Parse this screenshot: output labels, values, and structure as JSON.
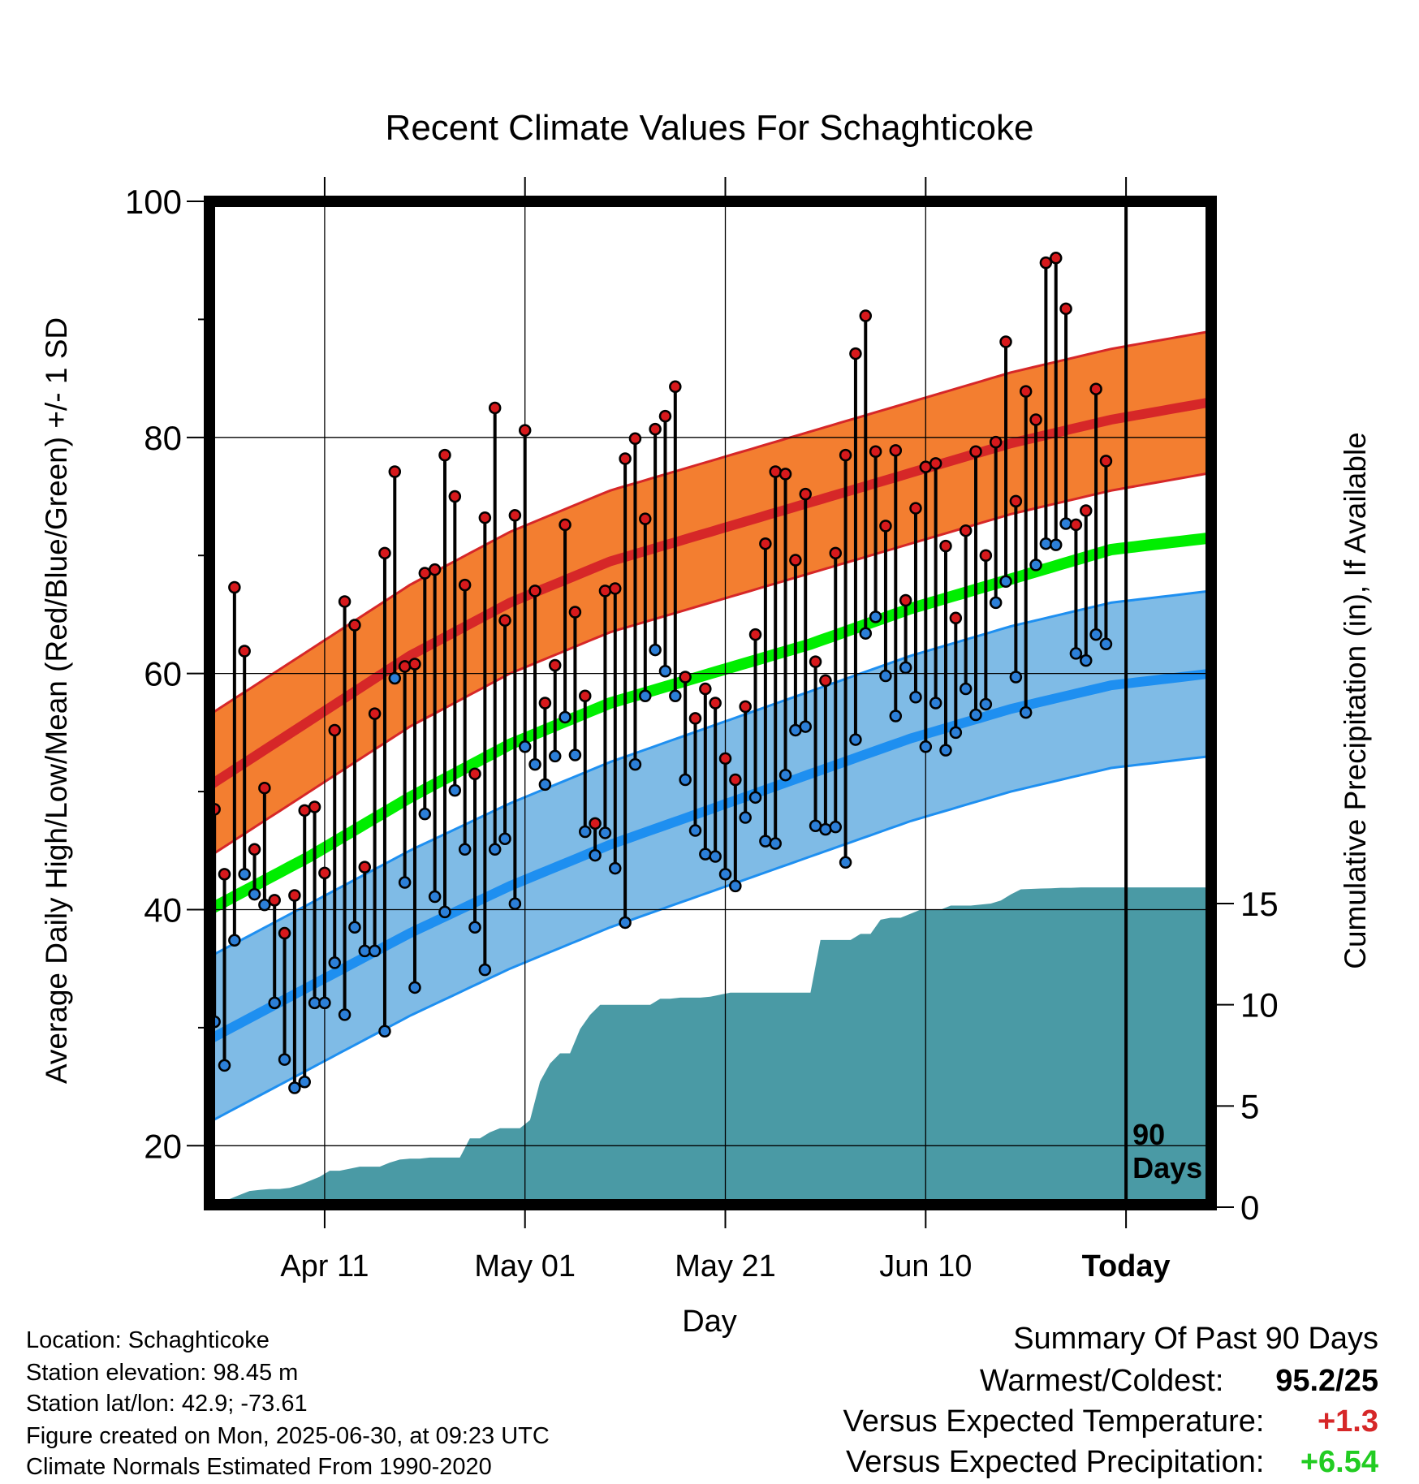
{
  "chart_data": {
    "type": "line",
    "title": "Recent Climate Values For Schaghticoke",
    "xlabel": "Day",
    "ylabel": "Average Daily High/Low/Mean (Red/Blue/Green) +/- 1 SD",
    "y2label": "Cumulative Precipitation (in), If Available",
    "ylim": [
      15,
      100
    ],
    "y2lim": [
      0,
      15
    ],
    "y_ticks": [
      "20",
      "40",
      "60",
      "80",
      "100"
    ],
    "y2_ticks": [
      "0",
      "5",
      "10",
      "15"
    ],
    "x_tick_labels": [
      "Apr 11",
      "May 01",
      "May 21",
      "Jun 10",
      "Today"
    ],
    "x_tick_days": [
      11.5,
      31.5,
      51.5,
      71.5,
      91.5
    ],
    "today_marker": "90\nDays",
    "normals": {
      "days": [
        0,
        10,
        20,
        30,
        40,
        50,
        60,
        70,
        80,
        90,
        100
      ],
      "high_mean": [
        50.5,
        56,
        61.5,
        66,
        69.5,
        72,
        74.5,
        77,
        79.5,
        81.5,
        83
      ],
      "high_sd": 6,
      "low_mean": [
        29,
        33.5,
        38,
        42,
        45.5,
        48.5,
        51.5,
        54.5,
        57,
        59,
        60
      ],
      "low_sd": 7,
      "mean": [
        40,
        44.5,
        49.5,
        54,
        57.5,
        60,
        62.5,
        65.5,
        68,
        70.5,
        71.5
      ]
    },
    "series": [
      {
        "name": "High",
        "color": "#d7191c",
        "values": [
          48.5,
          43,
          67.3,
          61.9,
          45.1,
          50.3,
          40.8,
          38,
          41.2,
          48.4,
          48.7,
          43.1,
          55.2,
          66.1,
          64.1,
          43.6,
          56.6,
          70.2,
          77.1,
          60.6,
          60.8,
          68.5,
          68.8,
          78.5,
          75,
          67.5,
          51.5,
          73.2,
          82.5,
          64.5,
          73.4,
          80.6,
          67,
          57.5,
          60.7,
          72.6,
          65.2,
          58.1,
          47.3,
          67,
          67.2,
          78.2,
          79.9,
          73.1,
          80.7,
          81.8,
          84.3,
          59.7,
          56.2,
          58.7,
          57.5,
          52.8,
          51,
          57.2,
          63.3,
          71,
          77.1,
          76.9,
          69.6,
          75.2,
          61,
          59.4,
          70.2,
          78.5,
          87.1,
          90.3,
          78.8,
          72.5,
          78.9,
          66.2,
          74,
          77.5,
          77.8,
          70.8,
          64.7,
          72.1,
          78.8,
          70,
          79.6,
          88.1,
          74.6,
          83.9,
          81.5,
          94.8,
          95.2,
          90.9,
          72.6,
          73.8,
          84.1,
          78
        ]
      },
      {
        "name": "Low",
        "color": "#2c7fd8",
        "values": [
          30.5,
          26.8,
          37.4,
          43,
          41.3,
          40.4,
          32.1,
          27.3,
          24.9,
          25.4,
          32.1,
          32.1,
          35.5,
          31.1,
          38.5,
          36.5,
          36.5,
          29.7,
          59.6,
          42.3,
          33.4,
          48.1,
          41.1,
          39.8,
          50.1,
          45.1,
          38.5,
          34.9,
          45.1,
          46,
          40.5,
          53.8,
          52.3,
          50.6,
          53,
          56.3,
          53.1,
          46.6,
          44.6,
          46.5,
          43.5,
          38.9,
          52.3,
          58.1,
          62,
          60.2,
          58.1,
          51,
          46.7,
          44.7,
          44.5,
          43,
          42,
          47.8,
          49.5,
          45.8,
          45.6,
          51.4,
          55.2,
          55.5,
          47.1,
          46.8,
          47,
          44,
          54.4,
          63.4,
          64.8,
          59.8,
          56.4,
          60.5,
          58,
          53.8,
          57.5,
          53.5,
          55,
          58.7,
          56.5,
          57.4,
          66,
          67.8,
          59.7,
          56.7,
          69.2,
          71,
          70.9,
          72.7,
          61.7,
          61.1,
          63.3,
          62.5
        ]
      }
    ],
    "precip_days": [
      0,
      1,
      2,
      3,
      4,
      5,
      6,
      7,
      8,
      9,
      10,
      11,
      12,
      13,
      14,
      15,
      16,
      17,
      18,
      19,
      20,
      21,
      22,
      23,
      24,
      25,
      26,
      27,
      28,
      29,
      30,
      31,
      32,
      33,
      34,
      35,
      36,
      37,
      38,
      39,
      40,
      41,
      42,
      43,
      44,
      45,
      46,
      47,
      48,
      49,
      50,
      51,
      52,
      53,
      54,
      55,
      56,
      57,
      58,
      59,
      60,
      61,
      62,
      63,
      64,
      65,
      66,
      67,
      68,
      69,
      70,
      71,
      72,
      73,
      74,
      75,
      76,
      77,
      78,
      79,
      80,
      81,
      82,
      83,
      84,
      85,
      86,
      87,
      88,
      89,
      90,
      91,
      100
    ],
    "precip_values": [
      0,
      0.1,
      0.4,
      0.6,
      0.8,
      0.85,
      0.9,
      0.9,
      0.95,
      1.1,
      1.3,
      1.5,
      1.8,
      1.8,
      1.9,
      2,
      2,
      2,
      2.2,
      2.35,
      2.4,
      2.4,
      2.45,
      2.45,
      2.45,
      2.45,
      3.4,
      3.4,
      3.7,
      3.9,
      3.9,
      3.9,
      4.3,
      6.2,
      7.1,
      7.6,
      7.6,
      8.8,
      9.5,
      10,
      10,
      10,
      10,
      10,
      10,
      10.3,
      10.3,
      10.35,
      10.35,
      10.35,
      10.4,
      10.5,
      10.6,
      10.6,
      10.6,
      10.6,
      10.6,
      10.6,
      10.6,
      10.6,
      10.6,
      13.2,
      13.2,
      13.2,
      13.2,
      13.5,
      13.5,
      14.2,
      14.3,
      14.3,
      14.5,
      14.7,
      14.7,
      14.7,
      14.9,
      14.9,
      14.9,
      14.95,
      15,
      15.15,
      15.45,
      15.7,
      15.72,
      15.74,
      15.75,
      15.78,
      15.78,
      15.8,
      15.8,
      15.8,
      15.8,
      15.8,
      15.8
    ],
    "colors": {
      "high_band": "#f37e30",
      "high_line": "#d62728",
      "low_band": "#7fbbe6",
      "low_line": "#1e8ff0",
      "mean_line": "#00ee00",
      "precip": "#4a9aa5",
      "positive_temp": "#d62728",
      "positive_precip": "#22cc22"
    }
  },
  "info": {
    "location": "Location: Schaghticoke",
    "elevation": "Station elevation: 98.45 m",
    "latlon": "Station lat/lon: 42.9; -73.61",
    "created": "Figure created on Mon, 2025-06-30, at 09:23 UTC",
    "normals": "Climate Normals Estimated From 1990-2020"
  },
  "summary": {
    "title": "Summary Of Past 90 Days",
    "warmest_label": "Warmest/Coldest:",
    "warmest_value": "95.2/25",
    "temp_label": "Versus Expected Temperature:",
    "temp_value": "+1.3",
    "precip_label": "Versus Expected Precipitation:",
    "precip_value": "+6.54"
  }
}
